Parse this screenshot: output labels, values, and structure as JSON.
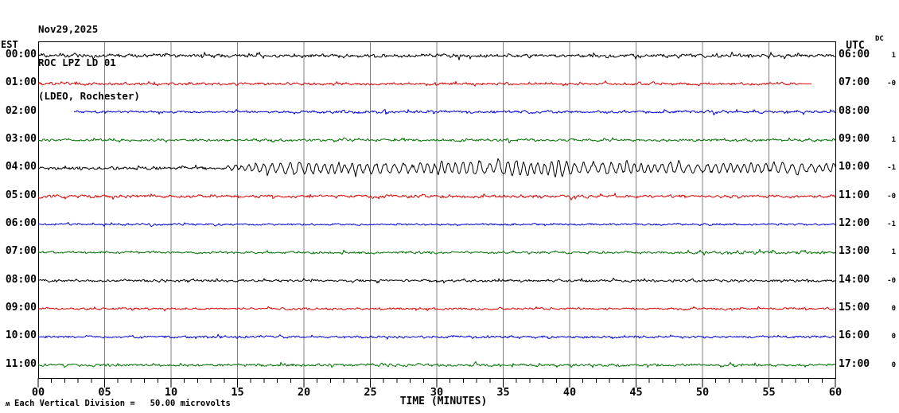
{
  "header": {
    "date": "Nov29,2025",
    "station": "ROC LPZ LD 01",
    "location": "(LDEO, Rochester)"
  },
  "left_axis": {
    "header": "EST"
  },
  "right_axis": {
    "header": "UTC"
  },
  "dc_column": {
    "header": "DC"
  },
  "x_axis": {
    "label": "TIME (MINUTES)",
    "major_ticks": [
      "00",
      "05",
      "10",
      "15",
      "20",
      "25",
      "30",
      "35",
      "40",
      "45",
      "50",
      "55",
      "60"
    ],
    "minutes_min": 0,
    "minutes_max": 60,
    "minor_tick_every_min": 1,
    "major_tick_every_min": 5
  },
  "footer": {
    "glyph": "ʍ",
    "scale_note": "Each Vertical Division =   50.00 microvolts"
  },
  "colors": {
    "background": "#ffffff",
    "border": "#000000",
    "gridline": "#808080",
    "trace_black": "#000000",
    "trace_red": "#dd0000",
    "trace_blue": "#0000dd",
    "trace_green": "#007200"
  },
  "chart_data": {
    "type": "line",
    "subtype": "helicorder-seismogram",
    "title": "ROC LPZ LD 01 (LDEO, Rochester) Nov29,2025",
    "xlabel": "TIME (MINUTES)",
    "x_range_minutes": [
      0,
      60
    ],
    "rows_count": 12,
    "grid": "vertical gray lines every 5 minutes",
    "notable_features": [
      "Row 02:00 EST (blue) trace starts late, near minute 2.7",
      "Row 01:00 EST (red) trace ends early with flat segment near minute 58",
      "Row 03:00 EST (green) has a noise burst near minute 23",
      "Row 04:00 EST (black) shows a large-amplitude seismic event from about minute 14 to the end of the hour, strongest minutes 20-40"
    ],
    "rows": [
      {
        "est": "00:00",
        "utc": "06:00",
        "dc": "1",
        "color": "#000000",
        "start_min": 0,
        "end_min": 60,
        "amp_points": [
          [
            0,
            3.6
          ],
          [
            5,
            3.2
          ],
          [
            15,
            3.0
          ],
          [
            25,
            2.9
          ],
          [
            35,
            3.1
          ],
          [
            45,
            3.0
          ],
          [
            55,
            3.1
          ],
          [
            60,
            3.2
          ]
        ]
      },
      {
        "est": "01:00",
        "utc": "07:00",
        "dc": "-0",
        "color": "#dd0000",
        "start_min": 0,
        "end_min": 58.2,
        "amp_points": [
          [
            0,
            2.5
          ],
          [
            10,
            2.3
          ],
          [
            30,
            2.2
          ],
          [
            50,
            2.3
          ],
          [
            57.2,
            2.2
          ],
          [
            57.5,
            0.25
          ],
          [
            58.2,
            0.2
          ]
        ]
      },
      {
        "est": "02:00",
        "utc": "08:00",
        "dc": "",
        "color": "#0000dd",
        "start_min": 2.7,
        "end_min": 60,
        "amp_points": [
          [
            2.7,
            1.8
          ],
          [
            6,
            2.0
          ],
          [
            10,
            1.8
          ],
          [
            20,
            2.1
          ],
          [
            23,
            3.0
          ],
          [
            24,
            2.5
          ],
          [
            26,
            3.2
          ],
          [
            27,
            2.3
          ],
          [
            30,
            2.5
          ],
          [
            40,
            2.2
          ],
          [
            48,
            2.5
          ],
          [
            55,
            2.3
          ],
          [
            60,
            2.2
          ]
        ]
      },
      {
        "est": "03:00",
        "utc": "09:00",
        "dc": "1",
        "color": "#007200",
        "start_min": 0,
        "end_min": 60,
        "amp_points": [
          [
            0,
            2.1
          ],
          [
            10,
            2.2
          ],
          [
            22,
            2.3
          ],
          [
            23,
            4.4
          ],
          [
            24,
            3.0
          ],
          [
            25,
            2.2
          ],
          [
            31,
            2.3
          ],
          [
            32,
            3.0
          ],
          [
            33,
            2.2
          ],
          [
            36,
            2.8
          ],
          [
            37,
            2.2
          ],
          [
            45,
            2.1
          ],
          [
            52,
            2.6
          ],
          [
            57,
            2.4
          ],
          [
            60,
            2.2
          ]
        ]
      },
      {
        "est": "04:00",
        "utc": "10:00",
        "dc": "-1",
        "color": "#000000",
        "start_min": 0,
        "end_min": 60,
        "amp_points": [
          [
            0,
            2.8
          ],
          [
            13,
            2.8
          ],
          [
            20,
            3.5
          ],
          [
            40,
            3.4
          ],
          [
            60,
            3.0
          ]
        ],
        "osc": {
          "period_min": 0.6,
          "points": [
            [
              0,
              0
            ],
            [
              13.5,
              0
            ],
            [
              16,
              4
            ],
            [
              19,
              7
            ],
            [
              21,
              6
            ],
            [
              23,
              5
            ],
            [
              25,
              7
            ],
            [
              28,
              5
            ],
            [
              30,
              6
            ],
            [
              33,
              8
            ],
            [
              34.5,
              6
            ],
            [
              36,
              9
            ],
            [
              38,
              6
            ],
            [
              39.3,
              11
            ],
            [
              40,
              7
            ],
            [
              42,
              6
            ],
            [
              44,
              7
            ],
            [
              47,
              5
            ],
            [
              49,
              6
            ],
            [
              52,
              5
            ],
            [
              55,
              6
            ],
            [
              58,
              5
            ],
            [
              60,
              5
            ]
          ]
        }
      },
      {
        "est": "05:00",
        "utc": "11:00",
        "dc": "-0",
        "color": "#dd0000",
        "start_min": 0,
        "end_min": 60,
        "amp_points": [
          [
            0,
            3.6
          ],
          [
            1,
            2.7
          ],
          [
            5,
            2.4
          ],
          [
            20,
            2.4
          ],
          [
            30,
            2.6
          ],
          [
            40,
            2.4
          ],
          [
            60,
            2.4
          ]
        ]
      },
      {
        "est": "06:00",
        "utc": "12:00",
        "dc": "-1",
        "color": "#0000dd",
        "start_min": 0,
        "end_min": 60,
        "amp_points": [
          [
            0,
            1.7
          ],
          [
            30,
            1.6
          ],
          [
            60,
            1.8
          ]
        ]
      },
      {
        "est": "07:00",
        "utc": "13:00",
        "dc": "1",
        "color": "#007200",
        "start_min": 0,
        "end_min": 60,
        "amp_points": [
          [
            0,
            2.0
          ],
          [
            30,
            2.0
          ],
          [
            51,
            2.2
          ],
          [
            53,
            3.0
          ],
          [
            56,
            2.6
          ],
          [
            60,
            2.2
          ]
        ]
      },
      {
        "est": "08:00",
        "utc": "14:00",
        "dc": "-0",
        "color": "#000000",
        "start_min": 0,
        "end_min": 60,
        "amp_points": [
          [
            0,
            2.3
          ],
          [
            20,
            2.1
          ],
          [
            40,
            2.2
          ],
          [
            60,
            2.1
          ]
        ]
      },
      {
        "est": "09:00",
        "utc": "15:00",
        "dc": "0",
        "color": "#dd0000",
        "start_min": 0,
        "end_min": 60,
        "amp_points": [
          [
            0,
            1.9
          ],
          [
            30,
            1.8
          ],
          [
            60,
            1.8
          ]
        ]
      },
      {
        "est": "10:00",
        "utc": "16:00",
        "dc": "0",
        "color": "#0000dd",
        "start_min": 0,
        "end_min": 60,
        "amp_points": [
          [
            0,
            1.8
          ],
          [
            17,
            2.5
          ],
          [
            19,
            1.8
          ],
          [
            27,
            2.4
          ],
          [
            29,
            1.8
          ],
          [
            45,
            2.4
          ],
          [
            47,
            1.8
          ],
          [
            60,
            2.0
          ]
        ]
      },
      {
        "est": "11:00",
        "utc": "17:00",
        "dc": "0",
        "color": "#007200",
        "start_min": 0,
        "end_min": 60,
        "amp_points": [
          [
            0,
            2.2
          ],
          [
            20,
            2.4
          ],
          [
            40,
            2.2
          ],
          [
            60,
            2.2
          ]
        ]
      }
    ]
  }
}
